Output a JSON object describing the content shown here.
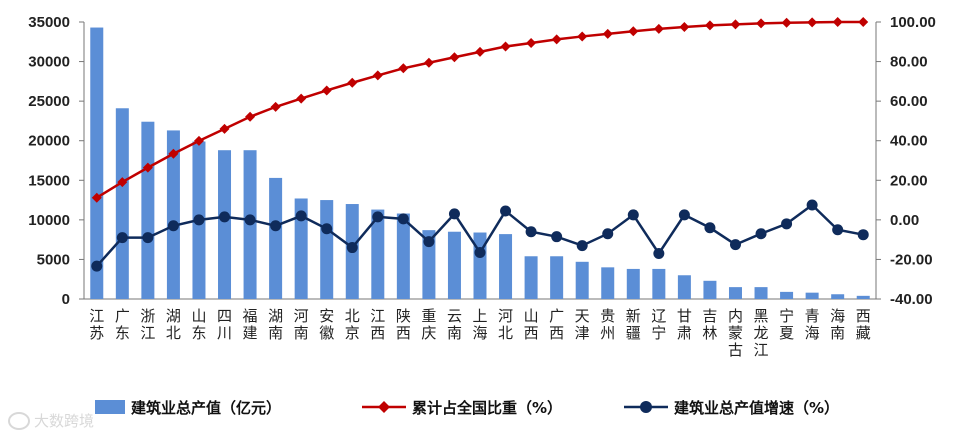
{
  "chart_data": {
    "type": "bar+line",
    "categories": [
      "江苏",
      "广东",
      "浙江",
      "湖北",
      "山东",
      "四川",
      "福建",
      "湖南",
      "河南",
      "安徽",
      "北京",
      "江西",
      "陕西",
      "重庆",
      "云南",
      "上海",
      "河北",
      "山西",
      "广西",
      "天津",
      "贵州",
      "新疆",
      "辽宁",
      "甘肃",
      "吉林",
      "内蒙古",
      "黑龙江",
      "宁夏",
      "青海",
      "海南",
      "西藏"
    ],
    "series": [
      {
        "name": "建筑业总产值（亿元）",
        "type": "bar",
        "axis": "left",
        "color": "#5b8ed6",
        "values": [
          34300,
          24100,
          22400,
          21300,
          19900,
          18800,
          18800,
          15300,
          12700,
          12500,
          12000,
          11300,
          10800,
          8700,
          8500,
          8400,
          8200,
          5400,
          5400,
          4700,
          4000,
          3800,
          3800,
          3000,
          2300,
          1500,
          1500,
          900,
          800,
          600,
          400
        ]
      },
      {
        "name": "累计占全国比重（%）",
        "type": "line",
        "axis": "right",
        "color": "#c00000",
        "marker": "diamond",
        "values": [
          11.2,
          19.1,
          26.4,
          33.4,
          39.9,
          46.0,
          52.1,
          57.1,
          61.3,
          65.4,
          69.3,
          73.0,
          76.6,
          79.4,
          82.2,
          84.9,
          87.6,
          89.4,
          91.2,
          92.7,
          94.0,
          95.3,
          96.5,
          97.5,
          98.3,
          98.8,
          99.3,
          99.6,
          99.8,
          100.0,
          100.0
        ]
      },
      {
        "name": "建筑业总产值增速（%）",
        "type": "line",
        "axis": "right",
        "color": "#0f2b5b",
        "marker": "circle",
        "values": [
          -23.4,
          -9.0,
          -9.0,
          -3.0,
          0.0,
          1.5,
          0.0,
          -3.0,
          2.0,
          -4.5,
          -14.0,
          1.5,
          0.5,
          -11.0,
          3.0,
          -16.5,
          4.5,
          -6.0,
          -8.5,
          -13.0,
          -7.0,
          2.5,
          -17.0,
          2.5,
          -4.0,
          -12.5,
          -7.0,
          -2.0,
          7.5,
          -5.0,
          -7.5
        ]
      }
    ],
    "y_left": {
      "min": 0,
      "max": 35000,
      "ticks": [
        "0",
        "5000",
        "10000",
        "15000",
        "20000",
        "25000",
        "30000",
        "35000"
      ]
    },
    "y_right": {
      "min": -40,
      "max": 100,
      "ticks": [
        "-40.00",
        "-20.00",
        "0.00",
        "20.00",
        "40.00",
        "60.00",
        "80.00",
        "100.00"
      ]
    },
    "grid": false,
    "legend_position": "bottom"
  },
  "legend": {
    "bar_label": "建筑业总产值（亿元）",
    "cum_label": "累计占全国比重（%）",
    "growth_label": "建筑业总产值增速（%）"
  },
  "watermark": {
    "text": "大数跨境"
  }
}
